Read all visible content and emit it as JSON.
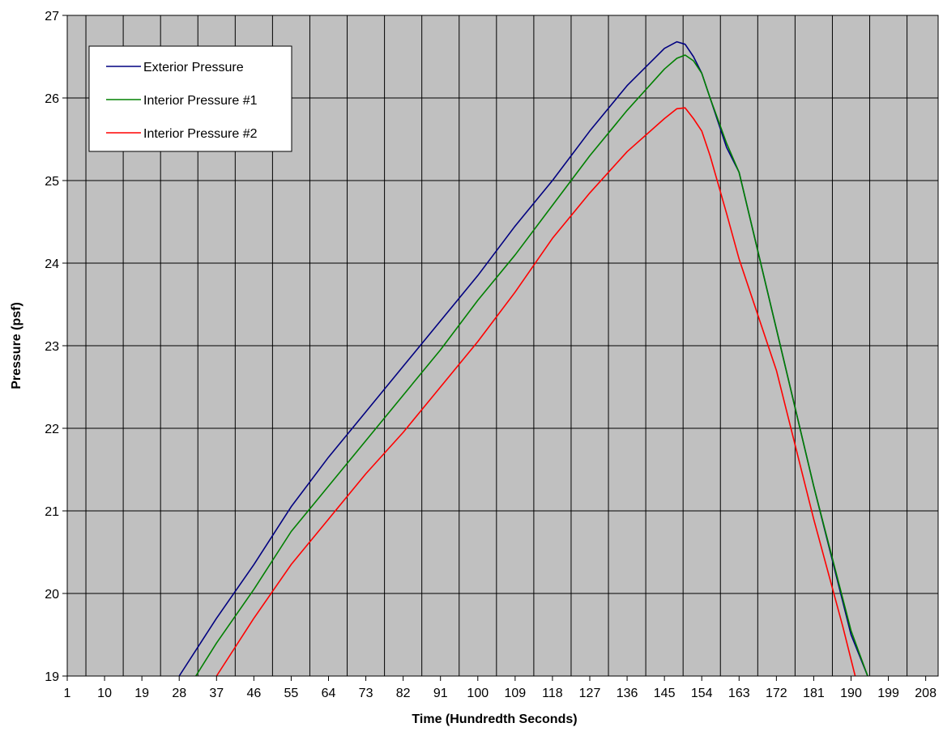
{
  "chart_data": {
    "type": "line",
    "xlabel": "Time (Hundredth Seconds)",
    "ylabel": "Pressure (psf)",
    "ylim": [
      19,
      27
    ],
    "yticks": [
      19,
      20,
      21,
      22,
      23,
      24,
      25,
      26,
      27
    ],
    "xticks": [
      1,
      10,
      19,
      28,
      37,
      46,
      55,
      64,
      73,
      82,
      91,
      100,
      109,
      118,
      127,
      136,
      145,
      154,
      163,
      172,
      181,
      190,
      199,
      208
    ],
    "xlim": [
      1,
      211
    ],
    "grid": true,
    "legend_position": "top-left",
    "plot_background": "#c0c0c0",
    "series": [
      {
        "name": "Exterior Pressure",
        "color": "#000080",
        "x": [
          28,
          37,
          46,
          55,
          64,
          73,
          82,
          91,
          100,
          109,
          118,
          127,
          136,
          145,
          148,
          150,
          152,
          154,
          156,
          160,
          163,
          172,
          181,
          190,
          194
        ],
        "y": [
          19.0,
          19.7,
          20.35,
          21.05,
          21.65,
          22.2,
          22.75,
          23.3,
          23.85,
          24.45,
          25.0,
          25.6,
          26.15,
          26.6,
          26.68,
          26.65,
          26.5,
          26.3,
          26.0,
          25.4,
          25.1,
          23.2,
          21.3,
          19.5,
          19.0
        ]
      },
      {
        "name": "Interior Pressure #1",
        "color": "#008000",
        "x": [
          32,
          37,
          46,
          55,
          64,
          73,
          82,
          91,
          100,
          109,
          118,
          127,
          136,
          145,
          148,
          150,
          152,
          154,
          156,
          160,
          163,
          172,
          181,
          190,
          194
        ],
        "y": [
          19.0,
          19.4,
          20.05,
          20.75,
          21.3,
          21.85,
          22.4,
          22.95,
          23.55,
          24.1,
          24.7,
          25.3,
          25.85,
          26.35,
          26.48,
          26.52,
          26.45,
          26.3,
          26.0,
          25.45,
          25.1,
          23.2,
          21.3,
          19.55,
          19.0
        ]
      },
      {
        "name": "Interior Pressure #2",
        "color": "#ff0000",
        "x": [
          37,
          46,
          55,
          64,
          73,
          82,
          91,
          100,
          109,
          118,
          127,
          136,
          145,
          148,
          150,
          152,
          154,
          156,
          160,
          163,
          172,
          181,
          188,
          191
        ],
        "y": [
          19.0,
          19.7,
          20.35,
          20.9,
          21.45,
          21.95,
          22.5,
          23.05,
          23.65,
          24.3,
          24.85,
          25.35,
          25.75,
          25.87,
          25.88,
          25.75,
          25.6,
          25.3,
          24.6,
          24.05,
          22.7,
          20.9,
          19.6,
          19.0
        ]
      }
    ]
  }
}
